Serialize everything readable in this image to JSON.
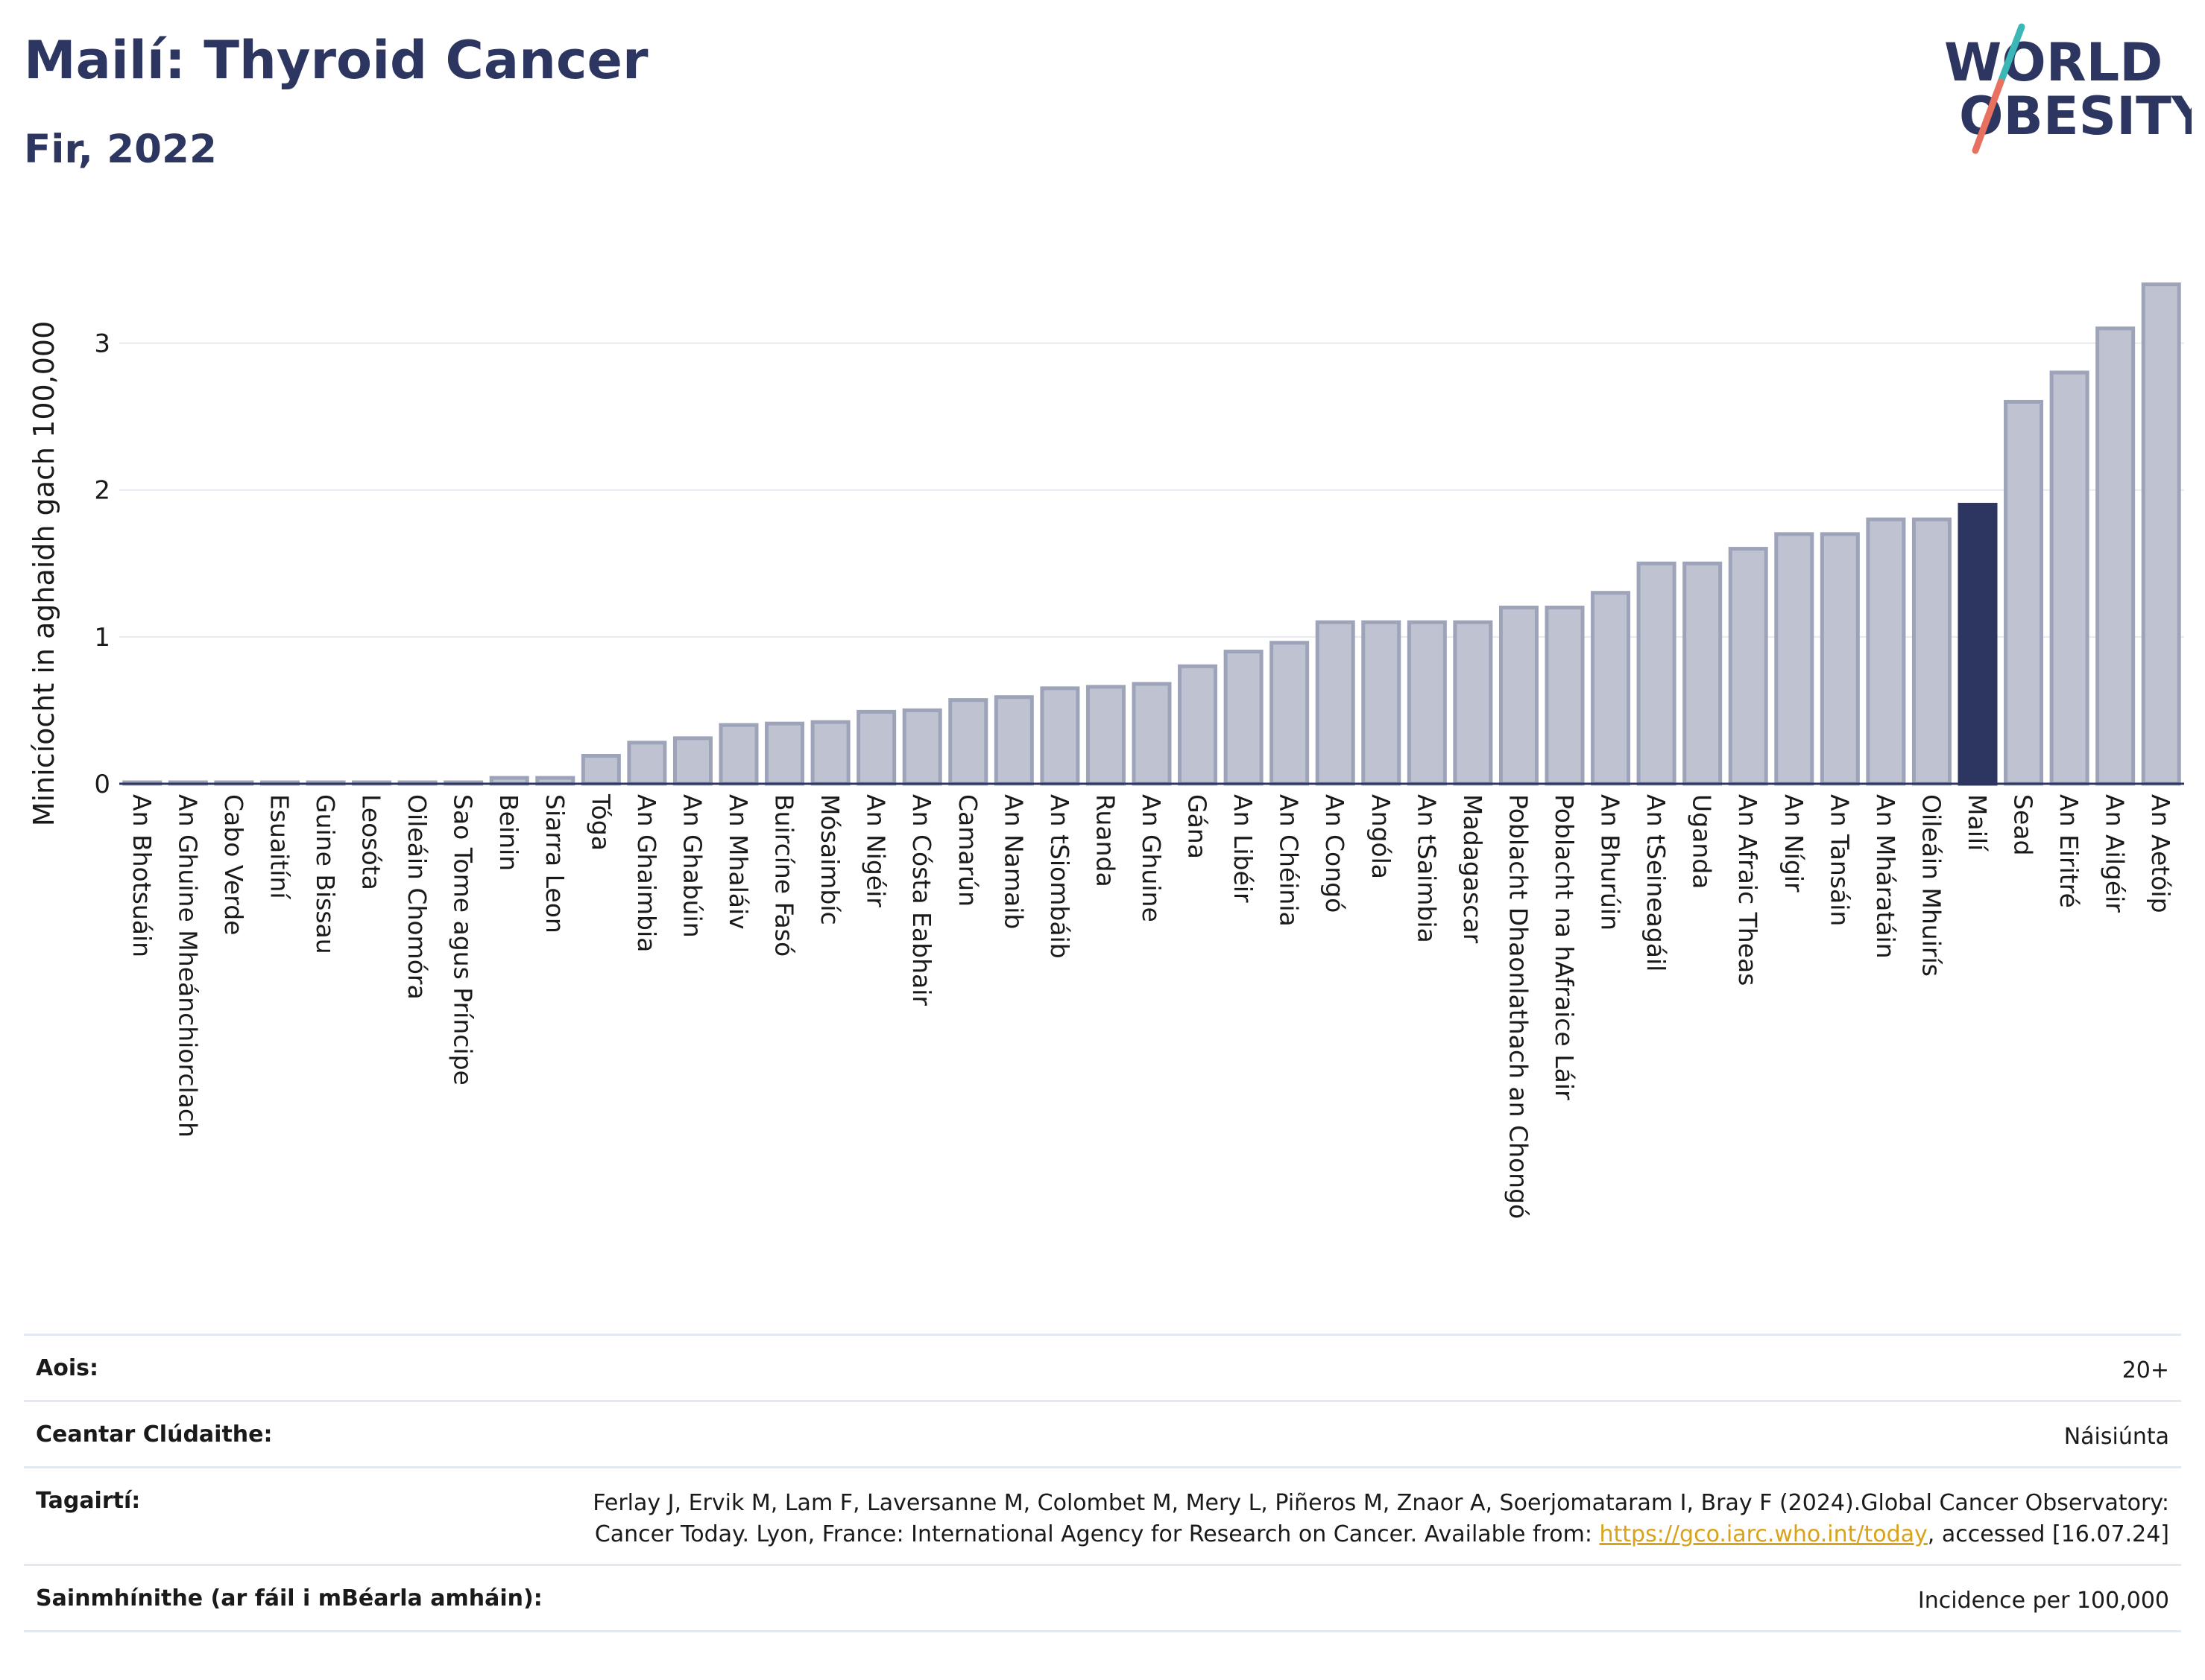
{
  "header": {
    "title": "Mailí: Thyroid Cancer",
    "subtitle": "Fir, 2022"
  },
  "logo": {
    "line1": "WORLD",
    "line2": "OBESITY"
  },
  "chart_data": {
    "type": "bar",
    "title": "Mailí: Thyroid Cancer",
    "subtitle": "Fir, 2022",
    "xlabel": "",
    "ylabel": "Minicíocht in aghaidh gach 100,000",
    "ylim": [
      0,
      3.5
    ],
    "yticks": [
      0,
      1,
      2,
      3
    ],
    "grid": true,
    "highlight": "Mailí",
    "colors": {
      "bar": "#bfc3d1",
      "bar_border": "#9da3b8",
      "highlight": "#2c3660",
      "axis": "#2c3660",
      "grid": "#e6eaef"
    },
    "categories": [
      "An Bhotsuáin",
      "An Ghuine Mheánchiorclach",
      "Cabo Verde",
      "Esuaitíní",
      "Guine Bissau",
      "Leosóta",
      "Oileáin Chomóra",
      "Sao Tome agus Príncipe",
      "Beinin",
      "Siarra Leon",
      "Tóga",
      "An Ghaimbia",
      "An Ghabúin",
      "An Mhaláiv",
      "Buircíne Fasó",
      "Mósaimbíc",
      "An Nigéir",
      "An Cósta Eabhair",
      "Camarún",
      "An Namaib",
      "An tSiombáib",
      "Ruanda",
      "An Ghuine",
      "Gána",
      "An Libéir",
      "An Chéinia",
      "An Congó",
      "Angóla",
      "An tSaimbia",
      "Madagascar",
      "Poblacht Dhaonlathach an Chongó",
      "Poblacht na hAfraice Láir",
      "An Bhurúin",
      "An tSeineagáil",
      "Uganda",
      "An Afraic Theas",
      "An Nígir",
      "An Tansáin",
      "An Mháratáin",
      "Oileáin Mhuirís",
      "Mailí",
      "Sead",
      "An Eiritré",
      "An Ailgéir",
      "An Aetóip"
    ],
    "values": [
      0.01,
      0.01,
      0.01,
      0.01,
      0.01,
      0.01,
      0.01,
      0.01,
      0.04,
      0.04,
      0.19,
      0.28,
      0.31,
      0.4,
      0.41,
      0.42,
      0.49,
      0.5,
      0.57,
      0.59,
      0.65,
      0.66,
      0.68,
      0.8,
      0.9,
      0.96,
      1.1,
      1.1,
      1.1,
      1.1,
      1.2,
      1.2,
      1.3,
      1.5,
      1.5,
      1.6,
      1.7,
      1.7,
      1.8,
      1.8,
      1.9,
      2.6,
      2.8,
      3.1,
      3.4
    ]
  },
  "info": {
    "rows": [
      {
        "label": "Aois:",
        "value": "20+"
      },
      {
        "label": "Ceantar Clúdaithe:",
        "value": "Náisiúnta"
      },
      {
        "label": "Tagairtí:",
        "value_pre": "Ferlay J, Ervik M, Lam F, Laversanne M, Colombet M, Mery L, Piñeros M, Znaor A, Soerjomataram I, Bray F (2024).Global Cancer Observatory: Cancer Today. Lyon, France: International Agency for Research on Cancer. Available from: ",
        "link": "https://gco.iarc.who.int/today",
        "value_post": ", accessed [16.07.24]"
      },
      {
        "label": "Sainmhínithe (ar fáil i mBéarla amháin):",
        "value": "Incidence per 100,000"
      }
    ]
  }
}
